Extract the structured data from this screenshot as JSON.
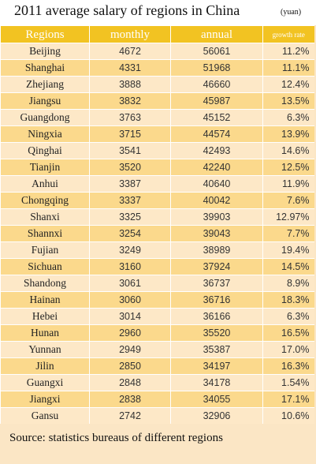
{
  "header": {
    "title": "2011 average salary of regions in China",
    "unit": "(yuan)"
  },
  "chart_data": {
    "type": "table",
    "title": "2011 average salary of regions in China",
    "columns": [
      "Regions",
      "monthly",
      "annual",
      "growth rate"
    ],
    "rows": [
      [
        "Beijing",
        "4672",
        "56061",
        "11.2%"
      ],
      [
        "Shanghai",
        "4331",
        "51968",
        "11.1%"
      ],
      [
        "Zhejiang",
        "3888",
        "46660",
        "12.4%"
      ],
      [
        "Jiangsu",
        "3832",
        "45987",
        "13.5%"
      ],
      [
        "Guangdong",
        "3763",
        "45152",
        "6.3%"
      ],
      [
        "Ningxia",
        "3715",
        "44574",
        "13.9%"
      ],
      [
        "Qinghai",
        "3541",
        "42493",
        "14.6%"
      ],
      [
        "Tianjin",
        "3520",
        "42240",
        "12.5%"
      ],
      [
        "Anhui",
        "3387",
        "40640",
        "11.9%"
      ],
      [
        "Chongqing",
        "3337",
        "40042",
        "7.6%"
      ],
      [
        "Shanxi",
        "3325",
        "39903",
        "12.97%"
      ],
      [
        "Shannxi",
        "3254",
        "39043",
        "7.7%"
      ],
      [
        "Fujian",
        "3249",
        "38989",
        "19.4%"
      ],
      [
        "Sichuan",
        "3160",
        "37924",
        "14.5%"
      ],
      [
        "Shandong",
        "3061",
        "36737",
        "8.9%"
      ],
      [
        "Hainan",
        "3060",
        "36716",
        "18.3%"
      ],
      [
        "Hebei",
        "3014",
        "36166",
        "6.3%"
      ],
      [
        "Hunan",
        "2960",
        "35520",
        "16.5%"
      ],
      [
        "Yunnan",
        "2949",
        "35387",
        "17.0%"
      ],
      [
        "Jilin",
        "2850",
        "34197",
        "16.3%"
      ],
      [
        "Guangxi",
        "2848",
        "34178",
        "1.54%"
      ],
      [
        "Jiangxi",
        "2838",
        "34055",
        "17.1%"
      ],
      [
        "Gansu",
        "2742",
        "32906",
        "10.6%"
      ]
    ]
  },
  "footer": {
    "source": "Source: statistics bureaus of different regions"
  },
  "colors": {
    "header_bg": "#f2c322",
    "row_light": "#fde8c7",
    "row_dark": "#fbd98c",
    "page_bg": "#fbe6c5"
  }
}
